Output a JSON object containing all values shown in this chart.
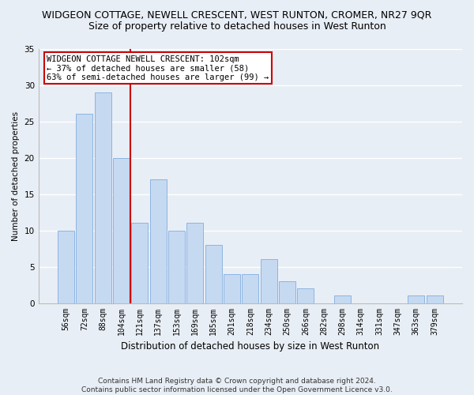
{
  "title": "WIDGEON COTTAGE, NEWELL CRESCENT, WEST RUNTON, CROMER, NR27 9QR",
  "subtitle": "Size of property relative to detached houses in West Runton",
  "xlabel": "Distribution of detached houses by size in West Runton",
  "ylabel": "Number of detached properties",
  "categories": [
    "56sqm",
    "72sqm",
    "88sqm",
    "104sqm",
    "121sqm",
    "137sqm",
    "153sqm",
    "169sqm",
    "185sqm",
    "201sqm",
    "218sqm",
    "234sqm",
    "250sqm",
    "266sqm",
    "282sqm",
    "298sqm",
    "314sqm",
    "331sqm",
    "347sqm",
    "363sqm",
    "379sqm"
  ],
  "values": [
    10,
    26,
    29,
    20,
    11,
    17,
    10,
    11,
    8,
    4,
    4,
    6,
    3,
    2,
    0,
    1,
    0,
    0,
    0,
    1,
    1
  ],
  "bar_color": "#c5d9f1",
  "bar_edge_color": "#8db4e2",
  "highlight_index": 3,
  "vline_color": "#cc0000",
  "ylim": [
    0,
    35
  ],
  "yticks": [
    0,
    5,
    10,
    15,
    20,
    25,
    30,
    35
  ],
  "annotation_line1": "WIDGEON COTTAGE NEWELL CRESCENT: 102sqm",
  "annotation_line2": "← 37% of detached houses are smaller (58)",
  "annotation_line3": "63% of semi-detached houses are larger (99) →",
  "annotation_box_color": "#cc0000",
  "footer_line1": "Contains HM Land Registry data © Crown copyright and database right 2024.",
  "footer_line2": "Contains public sector information licensed under the Open Government Licence v3.0.",
  "bg_color": "#e8eef5",
  "grid_color": "#ffffff",
  "title_fontsize": 9,
  "subtitle_fontsize": 9,
  "annot_fontsize": 7.5,
  "xlabel_fontsize": 8.5,
  "ylabel_fontsize": 7.5,
  "footer_fontsize": 6.5
}
